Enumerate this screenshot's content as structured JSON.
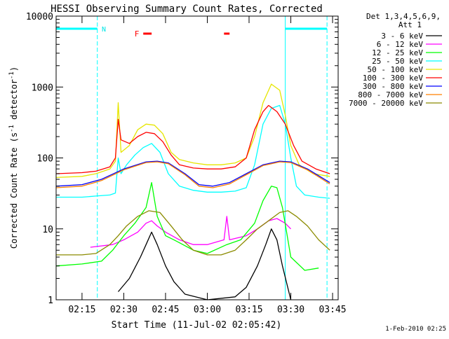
{
  "chart_data": {
    "type": "line",
    "title": "HESSI Observing Summary Count Rates, Corrected",
    "xlabel": "Start Time (11-Jul-02 02:05:42)",
    "ylabel": "Corrected Count Rate (s⁻¹ detector⁻¹)",
    "ylabel_parts": {
      "main": "Corrected Count Rate (s",
      "sup1": "-1",
      "mid": " detector",
      "sup2": "-1",
      "end": ")"
    },
    "y_scale": "log",
    "ylim": [
      1,
      10000
    ],
    "xlim": [
      "02:05:42",
      "03:47:00"
    ],
    "x_ticks": [
      "02:15",
      "02:30",
      "02:45",
      "03:00",
      "03:15",
      "03:30",
      "03:45"
    ],
    "y_ticks": [
      "1",
      "10",
      "100",
      "1000",
      "10000"
    ],
    "grid": false,
    "legend_position": "right, outside",
    "legend_header": [
      "Det 1,3,4,5,6,9,",
      "Att 1"
    ],
    "footer_date": "1-Feb-2010 02:25",
    "annotations": {
      "night_label": "N",
      "flare_label": "F",
      "night_bars": [
        [
          "02:05:42",
          "02:20:30"
        ],
        [
          "03:28:00",
          "03:43:00"
        ]
      ],
      "flare_bars": [
        [
          "02:37:00",
          "02:40:00"
        ],
        [
          "03:06:00",
          "03:08:00"
        ]
      ],
      "saa_dashed_lines": [
        "02:20:30",
        "03:43:00"
      ],
      "solid_cyan_lines": [
        "03:28:00"
      ]
    },
    "series": [
      {
        "name": "3 - 6 keV",
        "color": "#000000",
        "points": [
          [
            "02:28",
            1.3
          ],
          [
            "02:32",
            2.0
          ],
          [
            "02:36",
            4.0
          ],
          [
            "02:38",
            6.0
          ],
          [
            "02:40",
            9.0
          ],
          [
            "02:42",
            6.0
          ],
          [
            "02:45",
            3.0
          ],
          [
            "02:48",
            1.8
          ],
          [
            "02:52",
            1.2
          ],
          [
            "03:00",
            1.0
          ],
          [
            "03:10",
            1.1
          ],
          [
            "03:14",
            1.5
          ],
          [
            "03:18",
            3.0
          ],
          [
            "03:21",
            6.0
          ],
          [
            "03:23",
            10.0
          ],
          [
            "03:25",
            7.0
          ],
          [
            "03:27",
            3.0
          ],
          [
            "03:30",
            1.0
          ]
        ]
      },
      {
        "name": "6 - 12 keV",
        "color": "#ff00ff",
        "points": [
          [
            "02:18",
            5.5
          ],
          [
            "02:26",
            6.0
          ],
          [
            "02:30",
            7.0
          ],
          [
            "02:35",
            9.0
          ],
          [
            "02:38",
            12.0
          ],
          [
            "02:40",
            13.0
          ],
          [
            "02:42",
            11.0
          ],
          [
            "02:45",
            9.0
          ],
          [
            "02:50",
            7.0
          ],
          [
            "02:55",
            6.0
          ],
          [
            "03:00",
            6.0
          ],
          [
            "03:06",
            7.0
          ],
          [
            "03:07",
            15.0
          ],
          [
            "03:08",
            7.0
          ],
          [
            "03:14",
            8.0
          ],
          [
            "03:18",
            10.0
          ],
          [
            "03:22",
            13.0
          ],
          [
            "03:25",
            14.0
          ],
          [
            "03:28",
            12.0
          ],
          [
            "03:30",
            10.0
          ]
        ]
      },
      {
        "name": "12 - 25 keV",
        "color": "#00ff00",
        "points": [
          [
            "02:05:42",
            3.0
          ],
          [
            "02:15",
            3.2
          ],
          [
            "02:22",
            3.5
          ],
          [
            "02:26",
            5.0
          ],
          [
            "02:30",
            8.0
          ],
          [
            "02:34",
            12.0
          ],
          [
            "02:38",
            20.0
          ],
          [
            "02:40",
            45.0
          ],
          [
            "02:42",
            15.0
          ],
          [
            "02:45",
            8.0
          ],
          [
            "02:48",
            7.0
          ],
          [
            "02:55",
            5.0
          ],
          [
            "03:00",
            4.5
          ],
          [
            "03:07",
            6.0
          ],
          [
            "03:12",
            7.0
          ],
          [
            "03:17",
            12.0
          ],
          [
            "03:20",
            25.0
          ],
          [
            "03:23",
            40.0
          ],
          [
            "03:25",
            38.0
          ],
          [
            "03:27",
            20.0
          ],
          [
            "03:30",
            4.0
          ],
          [
            "03:35",
            2.6
          ],
          [
            "03:40",
            2.8
          ]
        ]
      },
      {
        "name": "25 - 50 keV",
        "color": "#00ffff",
        "points": [
          [
            "02:05:42",
            28.0
          ],
          [
            "02:15",
            28.0
          ],
          [
            "02:20",
            29.0
          ],
          [
            "02:25",
            30.0
          ],
          [
            "02:27",
            32.0
          ],
          [
            "02:28",
            100.0
          ],
          [
            "02:29",
            60.0
          ],
          [
            "02:31",
            80.0
          ],
          [
            "02:34",
            110.0
          ],
          [
            "02:37",
            140.0
          ],
          [
            "02:40",
            160.0
          ],
          [
            "02:43",
            120.0
          ],
          [
            "02:46",
            60.0
          ],
          [
            "02:50",
            40.0
          ],
          [
            "02:55",
            35.0
          ],
          [
            "03:00",
            33.0
          ],
          [
            "03:05",
            33.0
          ],
          [
            "03:10",
            34.0
          ],
          [
            "03:14",
            38.0
          ],
          [
            "03:17",
            80.0
          ],
          [
            "03:20",
            300.0
          ],
          [
            "03:23",
            500.0
          ],
          [
            "03:26",
            550.0
          ],
          [
            "03:28",
            300.0
          ],
          [
            "03:30",
            100.0
          ],
          [
            "03:32",
            40.0
          ],
          [
            "03:35",
            30.0
          ],
          [
            "03:40",
            28.0
          ],
          [
            "03:44",
            27.0
          ]
        ]
      },
      {
        "name": "50 - 100 keV",
        "color": "#e6e600",
        "points": [
          [
            "02:05:42",
            53.0
          ],
          [
            "02:15",
            55.0
          ],
          [
            "02:20",
            60.0
          ],
          [
            "02:25",
            70.0
          ],
          [
            "02:27",
            90.0
          ],
          [
            "02:28",
            600.0
          ],
          [
            "02:29",
            120.0
          ],
          [
            "02:32",
            150.0
          ],
          [
            "02:35",
            250.0
          ],
          [
            "02:38",
            300.0
          ],
          [
            "02:41",
            290.0
          ],
          [
            "02:44",
            220.0
          ],
          [
            "02:47",
            120.0
          ],
          [
            "02:50",
            95.0
          ],
          [
            "02:55",
            85.0
          ],
          [
            "03:00",
            80.0
          ],
          [
            "03:05",
            80.0
          ],
          [
            "03:10",
            85.0
          ],
          [
            "03:14",
            100.0
          ],
          [
            "03:17",
            200.0
          ],
          [
            "03:20",
            600.0
          ],
          [
            "03:23",
            1100.0
          ],
          [
            "03:26",
            900.0
          ],
          [
            "03:28",
            400.0
          ],
          [
            "03:30",
            150.0
          ],
          [
            "03:33",
            80.0
          ],
          [
            "03:38",
            60.0
          ],
          [
            "03:44",
            55.0
          ]
        ]
      },
      {
        "name": "100 - 300 keV",
        "color": "#ff0000",
        "points": [
          [
            "02:05:42",
            60.0
          ],
          [
            "02:15",
            62.0
          ],
          [
            "02:20",
            65.0
          ],
          [
            "02:25",
            75.0
          ],
          [
            "02:27",
            100.0
          ],
          [
            "02:28",
            350.0
          ],
          [
            "02:29",
            180.0
          ],
          [
            "02:32",
            160.0
          ],
          [
            "02:35",
            200.0
          ],
          [
            "02:38",
            230.0
          ],
          [
            "02:41",
            220.0
          ],
          [
            "02:44",
            170.0
          ],
          [
            "02:47",
            110.0
          ],
          [
            "02:50",
            80.0
          ],
          [
            "02:55",
            72.0
          ],
          [
            "03:00",
            70.0
          ],
          [
            "03:05",
            70.0
          ],
          [
            "03:10",
            75.0
          ],
          [
            "03:14",
            100.0
          ],
          [
            "03:17",
            250.0
          ],
          [
            "03:20",
            450.0
          ],
          [
            "03:22",
            550.0
          ],
          [
            "03:25",
            450.0
          ],
          [
            "03:28",
            300.0
          ],
          [
            "03:31",
            150.0
          ],
          [
            "03:34",
            90.0
          ],
          [
            "03:39",
            70.0
          ],
          [
            "03:44",
            60.0
          ]
        ]
      },
      {
        "name": "300 - 800 keV",
        "color": "#0000ff",
        "points": [
          [
            "02:05:42",
            40.0
          ],
          [
            "02:15",
            42.0
          ],
          [
            "02:22",
            50.0
          ],
          [
            "02:30",
            70.0
          ],
          [
            "02:38",
            88.0
          ],
          [
            "02:42",
            90.0
          ],
          [
            "02:46",
            85.0
          ],
          [
            "02:52",
            60.0
          ],
          [
            "02:57",
            42.0
          ],
          [
            "03:02",
            40.0
          ],
          [
            "03:08",
            45.0
          ],
          [
            "03:14",
            60.0
          ],
          [
            "03:20",
            80.0
          ],
          [
            "03:26",
            90.0
          ],
          [
            "03:30",
            88.0
          ],
          [
            "03:36",
            70.0
          ],
          [
            "03:44",
            45.0
          ]
        ]
      },
      {
        "name": "800 - 7000 keV",
        "color": "#ff8000",
        "points": [
          [
            "02:05:42",
            38.0
          ],
          [
            "02:15",
            40.0
          ],
          [
            "02:22",
            48.0
          ],
          [
            "02:30",
            68.0
          ],
          [
            "02:38",
            86.0
          ],
          [
            "02:42",
            88.0
          ],
          [
            "02:46",
            83.0
          ],
          [
            "02:52",
            58.0
          ],
          [
            "02:57",
            40.0
          ],
          [
            "03:02",
            38.0
          ],
          [
            "03:08",
            43.0
          ],
          [
            "03:14",
            58.0
          ],
          [
            "03:20",
            78.0
          ],
          [
            "03:26",
            88.0
          ],
          [
            "03:30",
            86.0
          ],
          [
            "03:36",
            68.0
          ],
          [
            "03:44",
            43.0
          ]
        ]
      },
      {
        "name": "7000 - 20000 keV",
        "color": "#8b8b00",
        "points": [
          [
            "02:05:42",
            4.3
          ],
          [
            "02:15",
            4.3
          ],
          [
            "02:20",
            4.5
          ],
          [
            "02:25",
            6.0
          ],
          [
            "02:28",
            8.0
          ],
          [
            "02:31",
            11.0
          ],
          [
            "02:35",
            15.0
          ],
          [
            "02:39",
            18.0
          ],
          [
            "02:43",
            17.0
          ],
          [
            "02:47",
            11.0
          ],
          [
            "02:51",
            7.0
          ],
          [
            "02:55",
            5.0
          ],
          [
            "03:00",
            4.3
          ],
          [
            "03:05",
            4.3
          ],
          [
            "03:10",
            5.0
          ],
          [
            "03:14",
            7.0
          ],
          [
            "03:18",
            10.0
          ],
          [
            "03:22",
            13.0
          ],
          [
            "03:26",
            17.0
          ],
          [
            "03:29",
            18.0
          ],
          [
            "03:32",
            15.0
          ],
          [
            "03:36",
            11.0
          ],
          [
            "03:40",
            7.0
          ],
          [
            "03:44",
            5.0
          ]
        ]
      }
    ]
  }
}
